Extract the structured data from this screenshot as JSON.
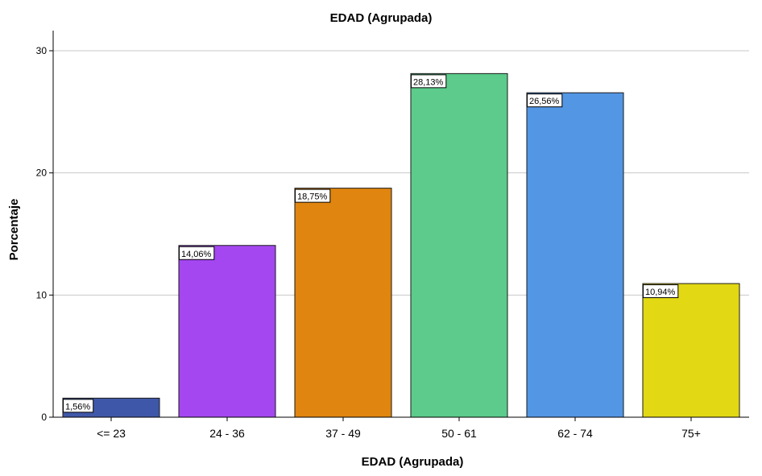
{
  "chart_data": {
    "type": "bar",
    "title": "EDAD  (Agrupada)",
    "xlabel": "EDAD  (Agrupada)",
    "ylabel": "Porcentaje",
    "categories": [
      "<= 23",
      "24 - 36",
      "37 - 49",
      "50 - 61",
      "62 - 74",
      "75+"
    ],
    "values": [
      1.56,
      14.06,
      18.75,
      28.13,
      26.56,
      10.94
    ],
    "data_labels": [
      "1,56%",
      "14,06%",
      "18,75%",
      "28,13%",
      "26,56%",
      "10,94%"
    ],
    "colors": [
      "#3f57a8",
      "#a447f0",
      "#e0850f",
      "#5ccb8b",
      "#5396e4",
      "#e2d814"
    ],
    "ylim": [
      0,
      30
    ],
    "yticks": [
      0,
      10,
      20,
      30
    ],
    "grid": true,
    "legend": "none"
  }
}
